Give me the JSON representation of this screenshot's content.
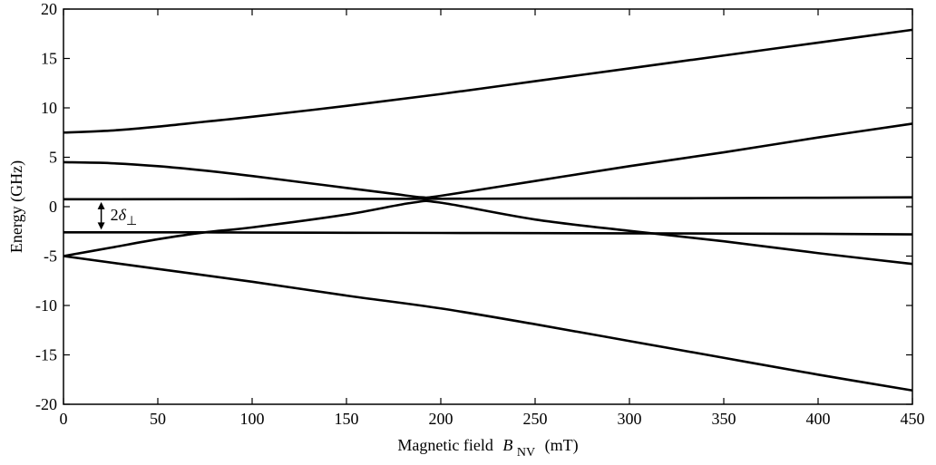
{
  "chart_data": {
    "type": "line",
    "title": "",
    "xlabel": "Magnetic field",
    "xlabel_symbol": "B",
    "xlabel_subscript": "NV",
    "xlabel_unit": "(mT)",
    "ylabel": "Energy (GHz)",
    "xlim": [
      0,
      450
    ],
    "ylim": [
      -20,
      20
    ],
    "xticks": [
      0,
      50,
      100,
      150,
      200,
      250,
      300,
      350,
      400,
      450
    ],
    "yticks": [
      -20,
      -15,
      -10,
      -5,
      0,
      5,
      10,
      15,
      20
    ],
    "grid": false,
    "legend": "none",
    "line_color": "#000000",
    "annotation": {
      "text_prefix": "2",
      "text_symbol": "δ",
      "text_subscript": "⊥",
      "x": 20,
      "y_from": 0.75,
      "y_to": -2.6
    },
    "series": [
      {
        "x": [
          0,
          25,
          50,
          75,
          100,
          150,
          200,
          250,
          300,
          350,
          400,
          450
        ],
        "values": [
          7.5,
          7.7,
          8.1,
          8.6,
          9.1,
          10.2,
          11.4,
          12.7,
          14.0,
          15.3,
          16.6,
          17.9
        ]
      },
      {
        "x": [
          0,
          25,
          50,
          75,
          100,
          125,
          150,
          175,
          190,
          200,
          250,
          300,
          350,
          400,
          450
        ],
        "values": [
          4.5,
          4.4,
          4.1,
          3.65,
          3.1,
          2.5,
          1.9,
          1.3,
          0.95,
          1.1,
          2.6,
          4.1,
          5.5,
          7.0,
          8.4
        ]
      },
      {
        "x": [
          0,
          100,
          200,
          300,
          400,
          450
        ],
        "values": [
          0.75,
          0.77,
          0.8,
          0.84,
          0.9,
          0.95
        ]
      },
      {
        "x": [
          0,
          25,
          50,
          75,
          100,
          150,
          185,
          200,
          250,
          300,
          350,
          400,
          450
        ],
        "values": [
          -5.0,
          -4.15,
          -3.3,
          -2.6,
          -2.1,
          -0.8,
          0.4,
          0.4,
          -1.3,
          -2.45,
          -3.5,
          -4.7,
          -5.8
        ]
      },
      {
        "x": [
          0,
          50,
          75,
          100,
          150,
          200,
          250,
          300,
          350,
          400,
          450
        ],
        "values": [
          -2.6,
          -2.6,
          -2.6,
          -2.62,
          -2.64,
          -2.66,
          -2.68,
          -2.7,
          -2.72,
          -2.75,
          -2.8
        ]
      },
      {
        "x": [
          0,
          50,
          100,
          150,
          200,
          250,
          300,
          350,
          400,
          450
        ],
        "values": [
          -5.0,
          -6.3,
          -7.6,
          -9.0,
          -10.3,
          -11.9,
          -13.6,
          -15.3,
          -17.0,
          -18.6
        ]
      }
    ]
  }
}
